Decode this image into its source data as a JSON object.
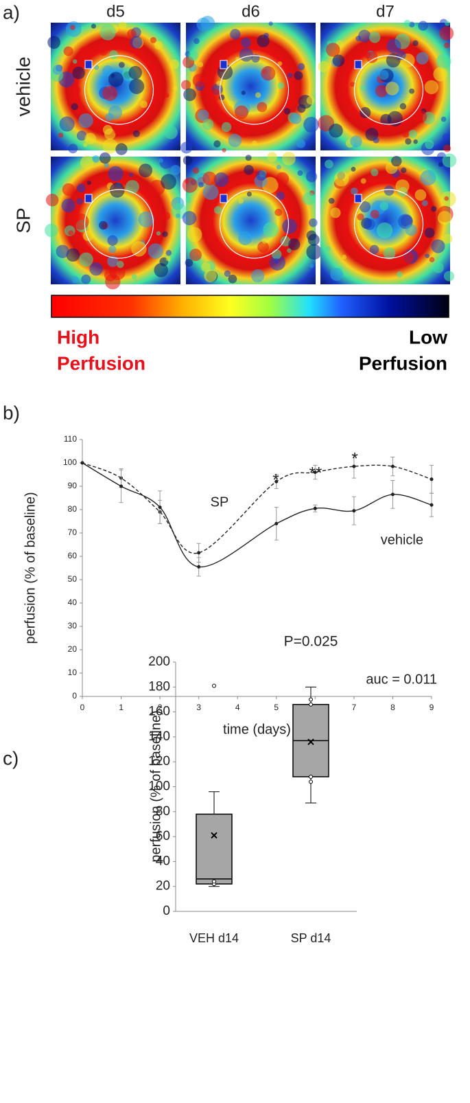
{
  "panel_a": {
    "panel_label": "a)",
    "columns": [
      "d5",
      "d6",
      "d7"
    ],
    "rows": [
      "vehicle",
      "SP"
    ],
    "colorbar": {
      "high_1": "High",
      "high_2": "Perfusion",
      "low_1": "Low",
      "low_2": "Perfusion"
    }
  },
  "chart_data": [
    {
      "type": "line",
      "panel_label": "b)",
      "x_label": "time (days)",
      "y_label": "perfusion (% of baseline)",
      "x": [
        0,
        1,
        2,
        3,
        5,
        6,
        7,
        8,
        9
      ],
      "xlim": [
        0,
        9
      ],
      "xticks": [
        0,
        1,
        2,
        3,
        4,
        5,
        6,
        7,
        8,
        9
      ],
      "ylim": [
        0,
        110
      ],
      "yticks": [
        0,
        10,
        20,
        30,
        40,
        50,
        60,
        70,
        80,
        90,
        100,
        110
      ],
      "series": [
        {
          "name": "SP",
          "color": "#222222",
          "dashed": true,
          "values": [
            100,
            93.5,
            79,
            61.5,
            92,
            96,
            98.5,
            98.5,
            93
          ],
          "errors": [
            0,
            4,
            5,
            4,
            3,
            3,
            5,
            4,
            6
          ]
        },
        {
          "name": "vehicle",
          "color": "#222222",
          "dashed": false,
          "values": [
            100,
            90,
            81,
            55.5,
            74,
            80.5,
            79.5,
            86.5,
            82
          ],
          "errors": [
            0,
            7,
            7,
            4,
            7,
            1.5,
            6,
            6,
            5
          ]
        }
      ],
      "annotations": [
        "*",
        "**",
        "*",
        "auc = 0.011"
      ]
    },
    {
      "type": "box",
      "panel_label": "c)",
      "title": "P=0.025",
      "y_label": "perfusion (% of baseline)",
      "categories": [
        "VEH d14",
        "SP d14"
      ],
      "ylim": [
        0,
        200
      ],
      "yticks": [
        0,
        20,
        40,
        60,
        80,
        100,
        120,
        140,
        160,
        180,
        200
      ],
      "color": "#a6a6a6",
      "boxes": [
        {
          "min": 20,
          "q1": 22,
          "median": 26,
          "q3": 78,
          "max": 96,
          "mean": 61,
          "points": [
            22,
            24
          ],
          "outliers": [
            181
          ]
        },
        {
          "min": 87,
          "q1": 108,
          "median": 137,
          "q3": 166,
          "max": 180,
          "mean": 136,
          "points": [
            104,
            108,
            166,
            170
          ],
          "outliers": []
        }
      ]
    }
  ]
}
